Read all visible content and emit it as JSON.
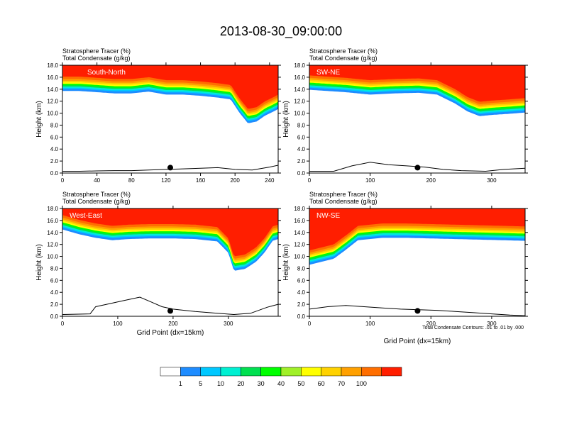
{
  "title": "2013-08-30_09:00:00",
  "footnote": "Total Condensate Contours: .01 to .01 by .000",
  "colors": {
    "levels": [
      "#ffffff",
      "#1e8cff",
      "#00c8ff",
      "#00f0d2",
      "#00e050",
      "#00ff00",
      "#a0f028",
      "#ffff00",
      "#ffd200",
      "#ffa000",
      "#ff6e00",
      "#ff1e00"
    ]
  },
  "colorbar": {
    "labels": [
      "1",
      "5",
      "10",
      "20",
      "30",
      "40",
      "50",
      "60",
      "70",
      "100"
    ]
  },
  "chart_data": [
    {
      "type": "heatmap",
      "name": "South-North",
      "label1": "Stratosphere Tracer   (%)",
      "label2": "Total Condensate   (g/kg)",
      "xlabel": "",
      "ylabel": "Height (km)",
      "xlim": [
        0,
        250
      ],
      "ylim": [
        0,
        18
      ],
      "xticks": [
        "0",
        "40",
        "80",
        "120",
        "160",
        "200",
        "240"
      ],
      "xtick_values": [
        0,
        40,
        80,
        120,
        160,
        200,
        240
      ],
      "yticks": [
        "0.0",
        "2.0",
        "4.0",
        "6.0",
        "8.0",
        "10.0",
        "12.0",
        "14.0",
        "16.0",
        "18.0"
      ],
      "marker_x": 125,
      "tropopause": [
        [
          0,
          14.6
        ],
        [
          20,
          14.6
        ],
        [
          40,
          14.4
        ],
        [
          60,
          14.2
        ],
        [
          80,
          14.2
        ],
        [
          100,
          14.5
        ],
        [
          120,
          14.0
        ],
        [
          140,
          14.0
        ],
        [
          160,
          13.8
        ],
        [
          180,
          13.5
        ],
        [
          195,
          13.2
        ],
        [
          205,
          11.0
        ],
        [
          215,
          9.2
        ],
        [
          225,
          9.5
        ],
        [
          235,
          10.5
        ],
        [
          245,
          11.2
        ],
        [
          250,
          11.6
        ]
      ],
      "terrain": [
        [
          0,
          0.3
        ],
        [
          20,
          0.3
        ],
        [
          40,
          0.35
        ],
        [
          60,
          0.4
        ],
        [
          80,
          0.4
        ],
        [
          100,
          0.5
        ],
        [
          120,
          0.6
        ],
        [
          140,
          0.7
        ],
        [
          160,
          0.8
        ],
        [
          180,
          0.9
        ],
        [
          200,
          0.6
        ],
        [
          220,
          0.5
        ],
        [
          240,
          1.0
        ],
        [
          250,
          1.3
        ]
      ]
    },
    {
      "type": "heatmap",
      "name": "SW-NE",
      "label1": "Stratosphere Tracer   (%)",
      "label2": "Total Condensate   (g/kg)",
      "xlabel": "",
      "ylabel": "Height (km)",
      "xlim": [
        0,
        355
      ],
      "ylim": [
        0,
        18
      ],
      "xticks": [
        "0",
        "100",
        "200",
        "300"
      ],
      "xtick_values": [
        0,
        100,
        200,
        300
      ],
      "yticks": [
        "0.0",
        "2.0",
        "4.0",
        "6.0",
        "8.0",
        "10.0",
        "12.0",
        "14.0",
        "16.0",
        "18.0"
      ],
      "marker_x": 178,
      "tropopause": [
        [
          0,
          14.8
        ],
        [
          30,
          14.6
        ],
        [
          60,
          14.4
        ],
        [
          100,
          14.0
        ],
        [
          140,
          14.2
        ],
        [
          180,
          14.3
        ],
        [
          210,
          14.0
        ],
        [
          240,
          12.5
        ],
        [
          260,
          11.2
        ],
        [
          280,
          10.4
        ],
        [
          300,
          10.6
        ],
        [
          330,
          10.8
        ],
        [
          355,
          11.0
        ]
      ],
      "terrain": [
        [
          0,
          0.3
        ],
        [
          40,
          0.3
        ],
        [
          70,
          1.2
        ],
        [
          100,
          1.8
        ],
        [
          130,
          1.4
        ],
        [
          160,
          1.2
        ],
        [
          190,
          1.0
        ],
        [
          220,
          0.6
        ],
        [
          250,
          0.4
        ],
        [
          290,
          0.3
        ],
        [
          320,
          0.6
        ],
        [
          355,
          0.8
        ]
      ]
    },
    {
      "type": "heatmap",
      "name": "West-East",
      "label1": "Stratosphere Tracer   (%)",
      "label2": "Total Condensate   (g/kg)",
      "xlabel": "Grid Point (dx=15km)",
      "ylabel": "Height (km)",
      "xlim": [
        0,
        390
      ],
      "ylim": [
        0,
        18
      ],
      "xticks": [
        "0",
        "100",
        "200",
        "300"
      ],
      "xtick_values": [
        0,
        100,
        200,
        300
      ],
      "yticks": [
        "0.0",
        "2.0",
        "4.0",
        "6.0",
        "8.0",
        "10.0",
        "12.0",
        "14.0",
        "16.0",
        "18.0"
      ],
      "marker_x": 195,
      "tropopause": [
        [
          0,
          15.4
        ],
        [
          30,
          14.6
        ],
        [
          60,
          14.0
        ],
        [
          90,
          13.6
        ],
        [
          120,
          13.8
        ],
        [
          160,
          13.9
        ],
        [
          200,
          13.9
        ],
        [
          240,
          13.8
        ],
        [
          280,
          13.4
        ],
        [
          300,
          11.5
        ],
        [
          310,
          8.5
        ],
        [
          330,
          8.8
        ],
        [
          350,
          10.0
        ],
        [
          365,
          11.5
        ],
        [
          380,
          13.5
        ],
        [
          390,
          13.8
        ]
      ],
      "terrain": [
        [
          0,
          0.3
        ],
        [
          50,
          0.4
        ],
        [
          60,
          1.6
        ],
        [
          80,
          2.0
        ],
        [
          110,
          2.6
        ],
        [
          140,
          3.2
        ],
        [
          160,
          2.4
        ],
        [
          180,
          1.6
        ],
        [
          200,
          1.2
        ],
        [
          240,
          0.8
        ],
        [
          280,
          0.5
        ],
        [
          310,
          0.3
        ],
        [
          340,
          0.5
        ],
        [
          370,
          1.5
        ],
        [
          390,
          2.0
        ]
      ]
    },
    {
      "type": "heatmap",
      "name": "NW-SE",
      "label1": "Stratosphere Tracer   (%)",
      "label2": "Total Condensate   (g/kg)",
      "xlabel": "Grid Point (dx=15km)",
      "ylabel": "Height (km)",
      "xlim": [
        0,
        355
      ],
      "ylim": [
        0,
        18
      ],
      "xticks": [
        "0",
        "100",
        "200",
        "300"
      ],
      "xtick_values": [
        0,
        100,
        200,
        300
      ],
      "yticks": [
        "0.0",
        "2.0",
        "4.0",
        "6.0",
        "8.0",
        "10.0",
        "12.0",
        "14.0",
        "16.0",
        "18.0"
      ],
      "marker_x": 178,
      "tropopause": [
        [
          0,
          9.5
        ],
        [
          20,
          10.0
        ],
        [
          40,
          10.5
        ],
        [
          60,
          12.0
        ],
        [
          80,
          13.6
        ],
        [
          120,
          14.0
        ],
        [
          160,
          14.0
        ],
        [
          200,
          13.9
        ],
        [
          240,
          13.8
        ],
        [
          280,
          13.7
        ],
        [
          320,
          13.6
        ],
        [
          355,
          13.5
        ]
      ],
      "terrain": [
        [
          0,
          1.2
        ],
        [
          30,
          1.6
        ],
        [
          60,
          1.8
        ],
        [
          90,
          1.6
        ],
        [
          120,
          1.4
        ],
        [
          150,
          1.2
        ],
        [
          180,
          1.1
        ],
        [
          210,
          1.0
        ],
        [
          240,
          0.8
        ],
        [
          270,
          0.6
        ],
        [
          300,
          0.4
        ],
        [
          330,
          0.2
        ],
        [
          355,
          0.1
        ]
      ]
    }
  ]
}
